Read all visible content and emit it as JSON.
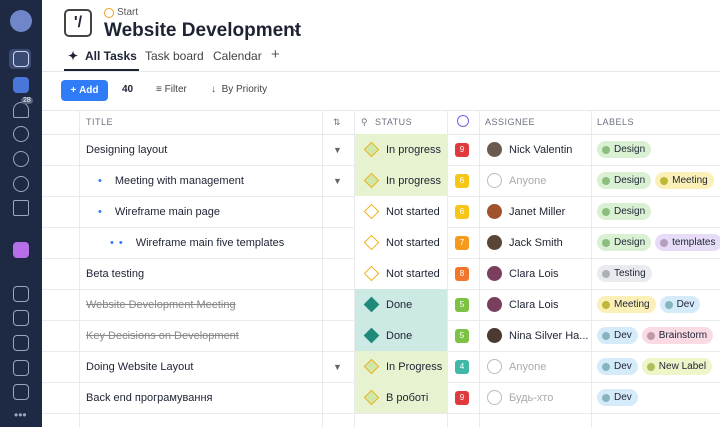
{
  "header": {
    "breadcrumb": "Start",
    "title": "Website Development",
    "tabs": [
      "All Tasks",
      "Task board",
      "Calendar",
      "+"
    ]
  },
  "sidebar": {
    "badge": "28"
  },
  "toolbar": {
    "add": "Add",
    "count": "40",
    "filter": "Filter",
    "sort": "By Priority"
  },
  "table": {
    "columns": {
      "title": "TITLE",
      "status": "STATUS",
      "assignee": "ASSIGNEE",
      "labels": "LABELS"
    },
    "rows": [
      {
        "title": "Designing layout",
        "level": 0,
        "expandable": true,
        "done": false,
        "status": {
          "text": "In progress",
          "color": "#e6f2d0"
        },
        "priority": {
          "value": 9,
          "color": "#e0393e"
        },
        "assignee": {
          "name": "Nick Valentin",
          "avatar": "#6b5a4e"
        },
        "labels": [
          {
            "text": "Design",
            "color": "#d9f0d3"
          }
        ]
      },
      {
        "title": "Meeting with management",
        "level": 1,
        "expandable": true,
        "done": false,
        "status": {
          "text": "In progress",
          "color": "#e6f2d0"
        },
        "priority": {
          "value": 6,
          "color": "#f5c518"
        },
        "assignee": {
          "name": "Anyone"
        },
        "labels": [
          {
            "text": "Design",
            "color": "#d9f0d3"
          },
          {
            "text": "Meeting",
            "color": "#fbf0b8"
          }
        ]
      },
      {
        "title": "Wireframe main page",
        "level": 1,
        "expandable": false,
        "done": false,
        "status": {
          "text": "Not started",
          "color": "#ffffff"
        },
        "priority": {
          "value": 6,
          "color": "#f5c518"
        },
        "assignee": {
          "name": "Janet Miller",
          "avatar": "#a0522d"
        },
        "labels": [
          {
            "text": "Design",
            "color": "#d9f0d3"
          }
        ]
      },
      {
        "title": "Wireframe main five templates",
        "level": 2,
        "expandable": false,
        "done": false,
        "status": {
          "text": "Not started",
          "color": "#ffffff"
        },
        "priority": {
          "value": 7,
          "color": "#f59a1c"
        },
        "assignee": {
          "name": "Jack Smith",
          "avatar": "#5a4636"
        },
        "labels": [
          {
            "text": "Design",
            "color": "#d9f0d3"
          },
          {
            "text": "templates",
            "color": "#e6dcf8"
          }
        ]
      },
      {
        "title": "Beta testing",
        "level": 0,
        "expandable": false,
        "done": false,
        "status": {
          "text": "Not started",
          "color": "#ffffff"
        },
        "priority": {
          "value": 8,
          "color": "#f2752c"
        },
        "assignee": {
          "name": "Clara Lois",
          "avatar": "#7b3f5e"
        },
        "labels": [
          {
            "text": "Testing",
            "color": "#e9ebee"
          }
        ]
      },
      {
        "title": "Website Development Meeting",
        "level": 0,
        "expandable": false,
        "done": true,
        "status": {
          "text": "Done",
          "color": "#cde9e4"
        },
        "priority": {
          "value": 5,
          "color": "#7cc243"
        },
        "assignee": {
          "name": "Clara Lois",
          "avatar": "#7b3f5e"
        },
        "labels": [
          {
            "text": "Meeting",
            "color": "#fbf0b8"
          },
          {
            "text": "Dev",
            "color": "#d6ebfa"
          }
        ]
      },
      {
        "title": "Key Decisions on Development",
        "level": 0,
        "expandable": false,
        "done": true,
        "status": {
          "text": "Done",
          "color": "#cde9e4"
        },
        "priority": {
          "value": 5,
          "color": "#7cc243"
        },
        "assignee": {
          "name": "Nina Silver Ha...",
          "avatar": "#4a3a30"
        },
        "labels": [
          {
            "text": "Dev",
            "color": "#d6ebfa"
          },
          {
            "text": "Brainstorm",
            "color": "#fbdbe3"
          }
        ]
      },
      {
        "title": "Doing Website Layout",
        "level": 0,
        "expandable": true,
        "done": false,
        "status": {
          "text": "In Progress",
          "color": "#e6f2d0"
        },
        "priority": {
          "value": 4,
          "color": "#3fb8a8"
        },
        "assignee": {
          "name": "Anyone"
        },
        "labels": [
          {
            "text": "Dev",
            "color": "#d6ebfa"
          },
          {
            "text": "New Label",
            "color": "#eef5c8"
          }
        ]
      },
      {
        "title": "Back end програмування",
        "level": 0,
        "expandable": false,
        "done": false,
        "status": {
          "text": "В роботі",
          "color": "#e6f2d0"
        },
        "priority": {
          "value": 9,
          "color": "#e0393e"
        },
        "assignee": {
          "name": "Будь-хто"
        },
        "labels": [
          {
            "text": "Dev",
            "color": "#d6ebfa"
          }
        ]
      }
    ]
  }
}
